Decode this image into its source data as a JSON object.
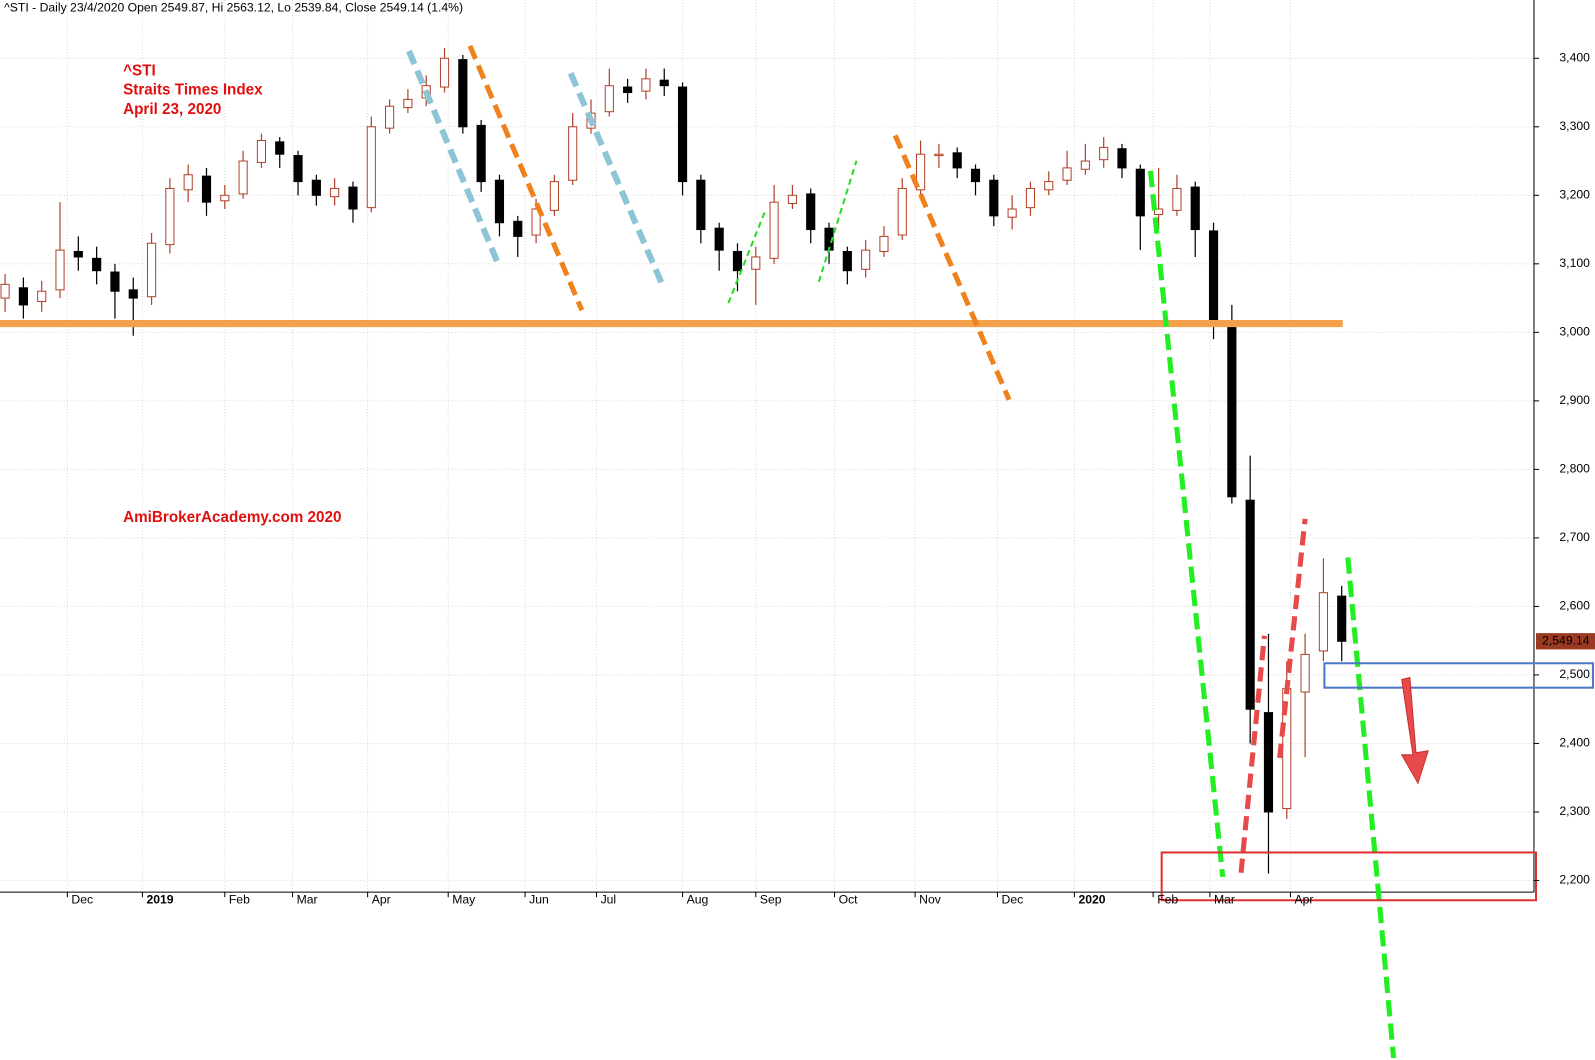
{
  "chart_data": {
    "type": "candlestick",
    "title": "^STI - Daily 23/4/2020 Open 2549.87, Hi 2563.12, Lo 2539.84, Close 2549.14 (1.4%)",
    "annotations": [
      "^STI",
      "Straits Times Index",
      "April 23, 2020",
      "AmiBrokerAcademy.com  2020"
    ],
    "open": [
      3050,
      3065,
      3045,
      3062,
      3118,
      3108,
      3088,
      3062,
      3052,
      3128,
      3208,
      3228,
      3192,
      3202,
      3248,
      3278,
      3258,
      3222,
      3198,
      3212,
      3182,
      3298,
      3328,
      3342,
      3358,
      3398,
      3302,
      3222,
      3162,
      3142,
      3178,
      3222,
      3298,
      3322,
      3358,
      3352,
      3368,
      3358,
      3222,
      3152,
      3118,
      3092,
      3108,
      3188,
      3202,
      3152,
      3118,
      3092,
      3118,
      3142,
      3208,
      3258,
      3262,
      3238,
      3222,
      3168,
      3182,
      3208,
      3222,
      3238,
      3252,
      3268,
      3238,
      3172,
      3178,
      3212,
      3148,
      3012,
      2755,
      2445,
      2305,
      2475,
      2535,
      2615
    ],
    "high": [
      3085,
      3080,
      3075,
      3190,
      3140,
      3125,
      3100,
      3080,
      3145,
      3225,
      3245,
      3240,
      3215,
      3265,
      3290,
      3285,
      3265,
      3230,
      3225,
      3220,
      3315,
      3340,
      3355,
      3375,
      3415,
      3405,
      3310,
      3230,
      3170,
      3195,
      3230,
      3320,
      3340,
      3385,
      3370,
      3385,
      3385,
      3365,
      3230,
      3160,
      3130,
      3125,
      3215,
      3215,
      3210,
      3160,
      3125,
      3135,
      3155,
      3225,
      3280,
      3275,
      3270,
      3245,
      3230,
      3200,
      3220,
      3235,
      3265,
      3275,
      3285,
      3275,
      3245,
      3240,
      3230,
      3220,
      3160,
      3040,
      2820,
      2560,
      2520,
      2560,
      2670,
      2630
    ],
    "low": [
      3030,
      3020,
      3030,
      3050,
      3090,
      3070,
      3020,
      2995,
      3040,
      3115,
      3190,
      3170,
      3180,
      3195,
      3240,
      3240,
      3200,
      3185,
      3185,
      3160,
      3175,
      3290,
      3320,
      3330,
      3350,
      3290,
      3205,
      3140,
      3110,
      3130,
      3170,
      3215,
      3290,
      3315,
      3335,
      3340,
      3345,
      3200,
      3130,
      3090,
      3060,
      3040,
      3100,
      3180,
      3130,
      3100,
      3070,
      3080,
      3110,
      3135,
      3200,
      3240,
      3225,
      3200,
      3155,
      3150,
      3170,
      3200,
      3215,
      3230,
      3240,
      3225,
      3120,
      3150,
      3170,
      3110,
      2990,
      2750,
      2400,
      2210,
      2290,
      2380,
      2520,
      2520
    ],
    "close": [
      3070,
      3040,
      3060,
      3120,
      3110,
      3090,
      3060,
      3050,
      3130,
      3210,
      3230,
      3190,
      3200,
      3250,
      3280,
      3260,
      3220,
      3200,
      3210,
      3180,
      3300,
      3330,
      3340,
      3360,
      3400,
      3300,
      3220,
      3160,
      3140,
      3180,
      3220,
      3300,
      3320,
      3360,
      3350,
      3370,
      3360,
      3220,
      3150,
      3120,
      3090,
      3110,
      3190,
      3200,
      3150,
      3120,
      3090,
      3120,
      3140,
      3210,
      3260,
      3260,
      3240,
      3220,
      3170,
      3180,
      3210,
      3220,
      3240,
      3250,
      3270,
      3240,
      3170,
      3180,
      3210,
      3150,
      3010,
      2760,
      2450,
      2300,
      2480,
      2530,
      2620,
      2549.14
    ],
    "up_color": "#b0432a",
    "down_color": "#000000",
    "price_label": {
      "value": 2549.14,
      "label": "2,549.14"
    },
    "price_label_color": "#9b3a22",
    "ylim": [
      2183,
      3485
    ],
    "yticks": [
      {
        "value": 2200,
        "label": "2,200"
      },
      {
        "value": 2300,
        "label": "2,300"
      },
      {
        "value": 2400,
        "label": "2,400"
      },
      {
        "value": 2500,
        "label": "2,500"
      },
      {
        "value": 2600,
        "label": "2,600"
      },
      {
        "value": 2700,
        "label": "2,700"
      },
      {
        "value": 2800,
        "label": "2,800"
      },
      {
        "value": 2900,
        "label": "2,900"
      },
      {
        "value": 3000,
        "label": "3,000"
      },
      {
        "value": 3100,
        "label": "3,100"
      },
      {
        "value": 3200,
        "label": "3,200"
      },
      {
        "value": 3300,
        "label": "3,300"
      },
      {
        "value": 3400,
        "label": "3,400"
      }
    ],
    "xticks": [
      {
        "value": 3.4,
        "label": "Dec"
      },
      {
        "value": 7.5,
        "label": "2019"
      },
      {
        "value": 12,
        "label": "Feb"
      },
      {
        "value": 15.7,
        "label": "Mar"
      },
      {
        "value": 19.8,
        "label": "Apr"
      },
      {
        "value": 24.2,
        "label": "May"
      },
      {
        "value": 28.4,
        "label": "Jun"
      },
      {
        "value": 32.3,
        "label": "Jul"
      },
      {
        "value": 37,
        "label": "Aug"
      },
      {
        "value": 41,
        "label": "Sep"
      },
      {
        "value": 45.3,
        "label": "Oct"
      },
      {
        "value": 49.7,
        "label": "Nov"
      },
      {
        "value": 54.2,
        "label": "Dec"
      },
      {
        "value": 58.4,
        "label": "2020"
      },
      {
        "value": 62.7,
        "label": "Feb"
      },
      {
        "value": 65.8,
        "label": "Mar"
      },
      {
        "value": 70.2,
        "label": "Apr"
      }
    ],
    "grid": true
  }
}
